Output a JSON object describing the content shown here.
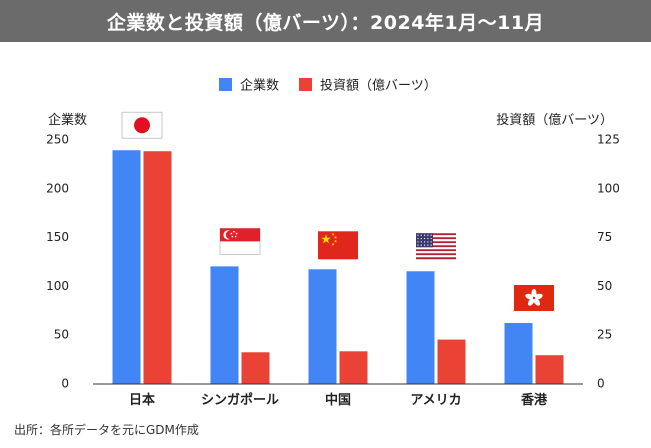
{
  "title": "企業数と投資額（億バーツ）：2024年1月〜11月",
  "source": "出所：各所データを元にGDM作成",
  "chart_data": {
    "type": "bar",
    "categories": [
      "日本",
      "シンガポール",
      "中国",
      "アメリカ",
      "香港"
    ],
    "flags": [
      "japan-flag",
      "singapore-flag",
      "china-flag",
      "usa-flag",
      "hongkong-flag"
    ],
    "series": [
      {
        "name": "企業数",
        "axis": "left",
        "color": "#4285f4",
        "values": [
          239,
          120,
          117,
          115,
          62
        ]
      },
      {
        "name": "投資額（億バーツ）",
        "axis": "right",
        "color": "#ea4335",
        "values": [
          119,
          16,
          16.5,
          22.5,
          14.5
        ]
      }
    ],
    "ylabel_left": "企業数",
    "ylabel_right": "投資額（億バーツ）",
    "ylim_left": [
      0,
      250
    ],
    "ylim_right": [
      0,
      125
    ],
    "yticks_left": [
      0,
      50,
      100,
      150,
      200,
      250
    ],
    "yticks_right": [
      0,
      25,
      50,
      75,
      100,
      125
    ],
    "legend_position": "top-center",
    "grid": false
  }
}
